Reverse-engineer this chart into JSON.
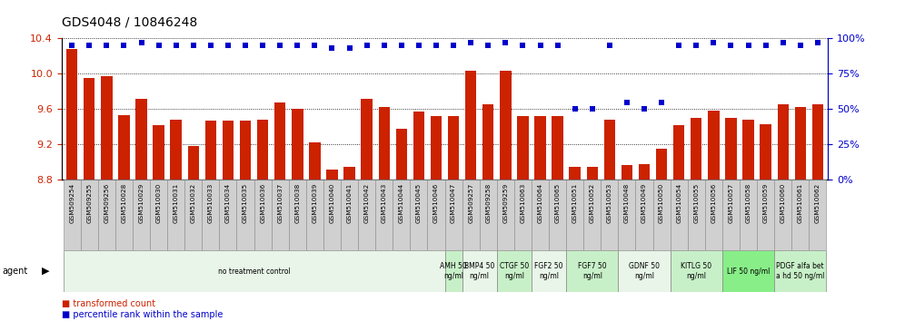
{
  "title": "GDS4048 / 10846248",
  "categories": [
    "GSM509254",
    "GSM509255",
    "GSM509256",
    "GSM510028",
    "GSM510029",
    "GSM510030",
    "GSM510031",
    "GSM510032",
    "GSM510033",
    "GSM510034",
    "GSM510035",
    "GSM510036",
    "GSM510037",
    "GSM510038",
    "GSM510039",
    "GSM510040",
    "GSM510041",
    "GSM510042",
    "GSM510043",
    "GSM510044",
    "GSM510045",
    "GSM510046",
    "GSM510047",
    "GSM509257",
    "GSM509258",
    "GSM509259",
    "GSM510063",
    "GSM510064",
    "GSM510065",
    "GSM510051",
    "GSM510052",
    "GSM510053",
    "GSM510048",
    "GSM510049",
    "GSM510050",
    "GSM510054",
    "GSM510055",
    "GSM510056",
    "GSM510057",
    "GSM510058",
    "GSM510059",
    "GSM510060",
    "GSM510061",
    "GSM510062"
  ],
  "bar_values": [
    10.28,
    9.95,
    9.97,
    9.53,
    9.72,
    9.42,
    9.48,
    9.18,
    9.47,
    9.47,
    9.47,
    9.48,
    9.68,
    9.6,
    9.22,
    8.92,
    8.95,
    9.72,
    9.62,
    9.38,
    9.57,
    9.52,
    9.52,
    10.03,
    9.65,
    10.03,
    9.52,
    9.52,
    9.52,
    8.95,
    8.95,
    9.48,
    8.97,
    8.98,
    9.15,
    9.42,
    9.5,
    9.58,
    9.5,
    9.48,
    9.43,
    9.65,
    9.62,
    9.65
  ],
  "percentile_values": [
    95,
    95,
    95,
    95,
    97,
    95,
    95,
    95,
    95,
    95,
    95,
    95,
    95,
    95,
    95,
    93,
    93,
    95,
    95,
    95,
    95,
    95,
    95,
    97,
    95,
    97,
    95,
    95,
    95,
    50,
    50,
    95,
    55,
    50,
    55,
    95,
    95,
    97,
    95,
    95,
    95,
    97,
    95,
    97
  ],
  "ylim_left": [
    8.8,
    10.4
  ],
  "ylim_right": [
    0,
    100
  ],
  "yticks_left": [
    8.8,
    9.2,
    9.6,
    10.0,
    10.4
  ],
  "yticks_right": [
    0,
    25,
    50,
    75,
    100
  ],
  "bar_color": "#cc2200",
  "dot_color": "#0000cc",
  "title_fontsize": 10,
  "agent_groups": [
    {
      "label": "no treatment control",
      "start": 0,
      "end": 22,
      "bg": "#e8f5e8"
    },
    {
      "label": "AMH 50\nng/ml",
      "start": 22,
      "end": 23,
      "bg": "#c8f0c8"
    },
    {
      "label": "BMP4 50\nng/ml",
      "start": 23,
      "end": 25,
      "bg": "#e8f5e8"
    },
    {
      "label": "CTGF 50\nng/ml",
      "start": 25,
      "end": 27,
      "bg": "#c8f0c8"
    },
    {
      "label": "FGF2 50\nng/ml",
      "start": 27,
      "end": 29,
      "bg": "#e8f5e8"
    },
    {
      "label": "FGF7 50\nng/ml",
      "start": 29,
      "end": 32,
      "bg": "#c8f0c8"
    },
    {
      "label": "GDNF 50\nng/ml",
      "start": 32,
      "end": 35,
      "bg": "#e8f5e8"
    },
    {
      "label": "KITLG 50\nng/ml",
      "start": 35,
      "end": 38,
      "bg": "#c8f0c8"
    },
    {
      "label": "LIF 50 ng/ml",
      "start": 38,
      "end": 41,
      "bg": "#88ee88"
    },
    {
      "label": "PDGF alfa bet\na hd 50 ng/ml",
      "start": 41,
      "end": 44,
      "bg": "#c8f0c8"
    }
  ]
}
